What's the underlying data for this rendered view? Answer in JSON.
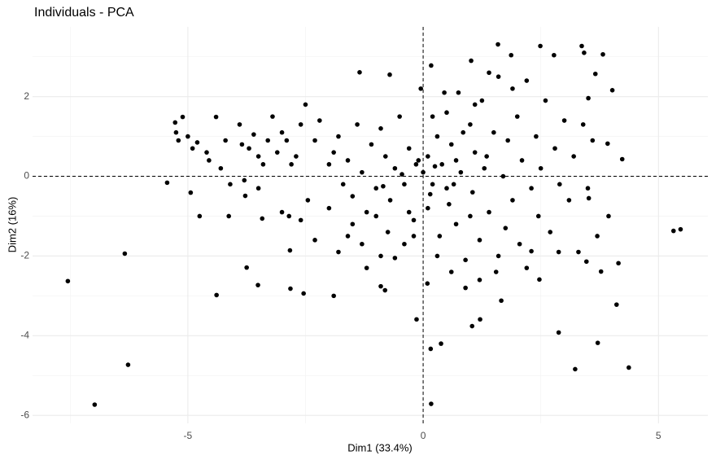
{
  "chart_data": {
    "type": "scatter",
    "title": "Individuals - PCA",
    "x_label": "Dim1 (33.4%)",
    "y_label": "Dim2 (16%)",
    "xlim": [
      -8.3,
      6.05
    ],
    "ylim": [
      -6.2,
      3.75
    ],
    "xticks": [
      -5,
      0,
      5
    ],
    "yticks": [
      -6,
      -4,
      -2,
      0,
      2
    ],
    "x_minor_grid": [
      -7.5,
      -2.5,
      2.5
    ],
    "y_minor_grid": [
      -5,
      -3,
      -1,
      1,
      3
    ],
    "grid": true,
    "hline": 0,
    "vline": 0,
    "series": [
      {
        "color": "#000000",
        "x": [
          -7.55,
          -6.98,
          -6.34,
          -6.27,
          -5.44,
          -5.27,
          -5.11,
          -4.94,
          -4.75,
          -4.39,
          -4.4,
          -4.13,
          -3.78,
          -3.75,
          -3.51,
          -3.42,
          -2.82,
          -2.83,
          -2.54,
          -1.9,
          -1.35,
          -0.9,
          -0.81,
          -0.71,
          -0.14,
          0.17,
          0.09,
          0.16,
          0.17,
          0.38,
          1.02,
          1.59,
          1.87,
          1.66,
          1.21,
          1.04,
          2.49,
          2.78,
          2.88,
          3.23,
          3.37,
          3.42,
          3.82,
          3.66,
          4.02,
          4.37,
          3.71,
          4.11,
          4.15,
          4.23,
          3.92,
          5.32,
          5.47,
          3.94,
          3.52,
          3.47,
          3.78,
          3.51,
          2.47,
          2.88,
          2.3,
          -5.0,
          -4.8,
          -4.6,
          -4.9,
          -5.2,
          -5.25,
          -4.55,
          -4.3,
          -4.2,
          -3.9,
          -3.85,
          -3.7,
          -3.6,
          -3.5,
          -3.4,
          -3.3,
          -3.2,
          -3.1,
          -3.0,
          -2.9,
          -2.8,
          -2.7,
          -2.6,
          -2.5,
          -2.45,
          -2.3,
          -2.2,
          -2.0,
          -1.9,
          -1.8,
          -1.7,
          -1.6,
          -1.5,
          -1.4,
          -1.3,
          -1.2,
          -1.1,
          -1.0,
          -0.9,
          -0.8,
          -0.7,
          -0.6,
          -0.5,
          -0.4,
          -0.3,
          -0.2,
          -0.1,
          -0.05,
          -4.1,
          -3.8,
          -3.5,
          -3.0,
          -2.85,
          -2.6,
          -2.3,
          -2.0,
          -1.8,
          -1.6,
          -1.5,
          -1.3,
          -1.2,
          -1.0,
          -0.9,
          -0.75,
          -0.6,
          -0.4,
          -0.3,
          -0.2,
          0.1,
          0.2,
          0.3,
          0.35,
          0.4,
          0.5,
          0.55,
          0.6,
          0.7,
          0.75,
          0.8,
          0.9,
          1.0,
          1.05,
          1.1,
          1.2,
          1.25,
          1.3,
          1.4,
          1.5,
          1.55,
          1.6,
          1.7,
          1.75,
          1.8,
          1.9,
          2.0,
          2.05,
          2.1,
          2.2,
          2.3,
          2.4,
          2.45,
          2.5,
          2.6,
          2.7,
          2.8,
          2.9,
          3.0,
          3.1,
          3.2,
          3.3,
          3.4,
          3.5,
          3.6,
          3.7,
          1.2,
          0.6,
          0.9,
          1.6,
          0.3,
          2.2,
          0.2,
          0.45,
          1.1,
          1.9,
          1.4,
          0.1,
          0.65,
          1.0,
          0.0,
          -0.15,
          0.25,
          0.5,
          0.7,
          -0.45,
          0.15,
          0.85,
          1.35,
          -0.85
        ],
        "values": [
          -2.63,
          -5.73,
          -1.94,
          -4.73,
          -0.16,
          1.35,
          1.49,
          -0.41,
          -1.0,
          -2.98,
          1.49,
          -1.0,
          -0.49,
          -2.29,
          -2.73,
          -1.06,
          -2.82,
          -1.86,
          -2.94,
          -3.0,
          2.61,
          -2.76,
          -2.86,
          2.55,
          -3.59,
          2.78,
          -2.69,
          -4.33,
          -5.71,
          -4.2,
          2.9,
          3.31,
          3.04,
          -3.12,
          -3.59,
          -3.76,
          3.27,
          3.04,
          -3.92,
          -4.84,
          3.27,
          3.1,
          3.06,
          2.57,
          2.16,
          -4.8,
          -4.18,
          -3.22,
          -2.18,
          0.43,
          0.82,
          -1.37,
          -1.33,
          -1.0,
          -0.55,
          -2.14,
          -2.39,
          1.96,
          -2.59,
          -1.9,
          -1.88,
          1.0,
          0.85,
          0.6,
          0.7,
          0.9,
          1.1,
          0.4,
          0.2,
          0.9,
          1.3,
          0.8,
          0.7,
          1.05,
          0.5,
          0.3,
          0.9,
          1.5,
          0.6,
          1.1,
          0.9,
          0.3,
          0.5,
          1.3,
          1.8,
          -0.6,
          0.9,
          1.4,
          0.3,
          0.6,
          1.0,
          -0.2,
          0.4,
          -0.5,
          1.3,
          0.1,
          -0.9,
          0.8,
          -0.3,
          1.2,
          0.5,
          -0.6,
          0.2,
          1.5,
          -0.2,
          0.7,
          -1.1,
          0.4,
          2.2,
          -0.2,
          -0.1,
          -0.3,
          -0.9,
          -1.0,
          -1.1,
          -1.6,
          -0.8,
          -1.9,
          -1.5,
          -1.2,
          -1.7,
          -2.3,
          -1.0,
          -2.0,
          -1.4,
          -2.05,
          -1.7,
          -0.9,
          -1.5,
          0.5,
          -0.2,
          1.0,
          -1.5,
          0.3,
          1.6,
          -0.7,
          0.8,
          -1.2,
          2.1,
          0.1,
          -2.1,
          1.3,
          -0.4,
          0.6,
          -1.6,
          1.9,
          0.2,
          -0.9,
          1.1,
          -2.4,
          2.5,
          0.0,
          -1.3,
          0.9,
          -0.6,
          1.5,
          -1.7,
          0.4,
          2.4,
          -0.3,
          1.0,
          -1.0,
          0.2,
          1.9,
          -1.4,
          0.7,
          -0.2,
          1.4,
          -0.6,
          0.5,
          -1.9,
          1.3,
          -0.3,
          0.9,
          -1.5,
          -2.6,
          -2.4,
          -2.8,
          -2.0,
          -2.0,
          -2.3,
          1.5,
          2.1,
          1.8,
          2.2,
          2.6,
          -0.8,
          -0.2,
          -1.0,
          0.1,
          0.3,
          0.25,
          -0.3,
          0.4,
          0.05,
          -0.45,
          1.1,
          0.5,
          -0.25
        ]
      }
    ]
  }
}
